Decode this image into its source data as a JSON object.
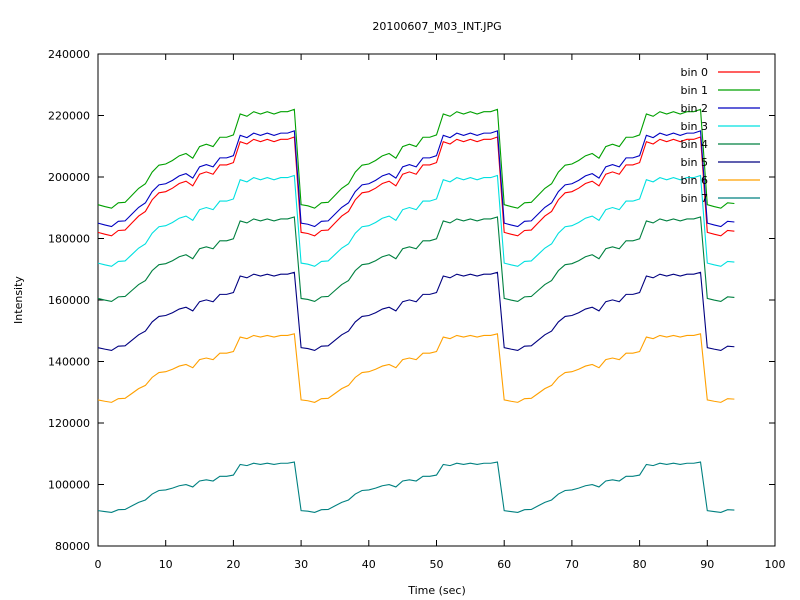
{
  "chart_data": {
    "type": "line",
    "title": "20100607_M03_INT.JPG",
    "xlabel": "Time (sec)",
    "ylabel": "Intensity",
    "xlim": [
      0,
      100
    ],
    "ylim": [
      80000,
      240000
    ],
    "x_ticks": [
      "0",
      "10",
      "20",
      "30",
      "40",
      "50",
      "60",
      "70",
      "80",
      "90",
      "100"
    ],
    "y_ticks": [
      "80000",
      "100000",
      "120000",
      "140000",
      "160000",
      "180000",
      "200000",
      "220000",
      "240000"
    ],
    "grid": false,
    "legend_position": "top-right",
    "x": [
      0,
      1,
      2,
      3,
      4,
      5,
      6,
      7,
      8,
      9,
      10,
      11,
      12,
      13,
      14,
      15,
      16,
      17,
      18,
      19,
      20,
      21,
      22,
      23,
      24,
      25,
      26,
      27,
      28,
      29,
      30,
      31,
      32,
      33,
      34,
      35,
      36,
      37,
      38,
      39,
      40,
      41,
      42,
      43,
      44,
      45,
      46,
      47,
      48,
      49,
      50,
      51,
      52,
      53,
      54,
      55,
      56,
      57,
      58,
      59,
      60,
      61,
      62,
      63,
      64,
      65,
      66,
      67,
      68,
      69,
      70,
      71,
      72,
      73,
      74,
      75,
      76,
      77,
      78,
      79,
      80,
      81,
      82,
      83,
      84,
      85,
      86,
      87,
      88,
      89,
      90,
      91,
      92,
      93,
      94
    ],
    "pattern": [
      0,
      -0.8,
      -1.5,
      0.8,
      1.0,
      4,
      7,
      9,
      14,
      17,
      17.5,
      19,
      21,
      22,
      20,
      25,
      26,
      25,
      29,
      29,
      30,
      39,
      38,
      40,
      39,
      40,
      39,
      40,
      40,
      41,
      0,
      -0.5,
      -1.5,
      0.8,
      1.0,
      4,
      7,
      9,
      14,
      17,
      17.5,
      19,
      21,
      22,
      20,
      25,
      26,
      25,
      29,
      29,
      30,
      39,
      38,
      40,
      39,
      40,
      39,
      40,
      40,
      41,
      0,
      -0.8,
      -1.5,
      0.8,
      1.0,
      4,
      7,
      9,
      14,
      17,
      17.5,
      19,
      21,
      22,
      20,
      25,
      26,
      25,
      29,
      29,
      30,
      39,
      38,
      40,
      39,
      40,
      39,
      40,
      40,
      41,
      0,
      -0.8,
      -1.5,
      0.8,
      0.5
    ],
    "series": [
      {
        "name": "bin 0",
        "color": "#ff0000",
        "base": 182000,
        "amp": 31000
      },
      {
        "name": "bin 1",
        "color": "#00a000",
        "base": 191000,
        "amp": 31000
      },
      {
        "name": "bin 2",
        "color": "#0000c0",
        "base": 185000,
        "amp": 30000
      },
      {
        "name": "bin 3",
        "color": "#00e0e0",
        "base": 172000,
        "amp": 28500
      },
      {
        "name": "bin 4",
        "color": "#008040",
        "base": 160500,
        "amp": 26500
      },
      {
        "name": "bin 5",
        "color": "#000080",
        "base": 144500,
        "amp": 24500
      },
      {
        "name": "bin 6",
        "color": "#ffa000",
        "base": 127500,
        "amp": 21500
      },
      {
        "name": "bin 7",
        "color": "#008080",
        "base": 91500,
        "amp": 15800
      }
    ]
  }
}
